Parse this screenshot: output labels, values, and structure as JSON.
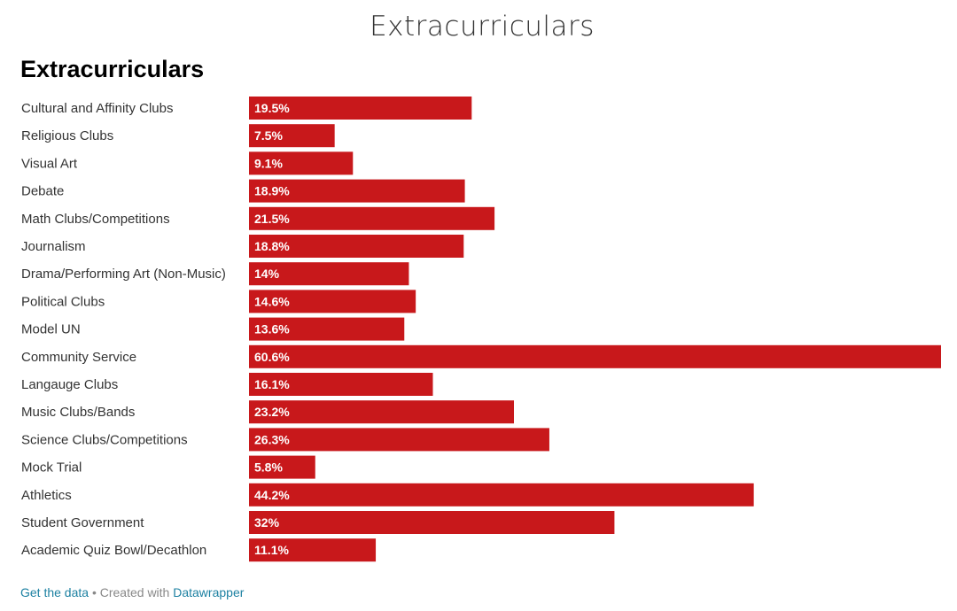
{
  "page": {
    "title": "Extracurriculars"
  },
  "chart_data": {
    "type": "bar",
    "orientation": "horizontal",
    "title": "Extracurriculars",
    "categories": [
      "Cultural and Affinity Clubs",
      "Religious Clubs",
      "Visual Art",
      "Debate",
      "Math Clubs/Competitions",
      "Journalism",
      "Drama/Performing Art (Non-Music)",
      "Political Clubs",
      "Model UN",
      "Community Service",
      "Langauge Clubs",
      "Music Clubs/Bands",
      "Science Clubs/Competitions",
      "Mock Trial",
      "Athletics",
      "Student Government",
      "Academic Quiz Bowl/Decathlon"
    ],
    "values": [
      19.5,
      7.5,
      9.1,
      18.9,
      21.5,
      18.8,
      14,
      14.6,
      13.6,
      60.6,
      16.1,
      23.2,
      26.3,
      5.8,
      44.2,
      32,
      11.1
    ],
    "value_labels": [
      "19.5%",
      "7.5%",
      "9.1%",
      "18.9%",
      "21.5%",
      "18.8%",
      "14%",
      "14.6%",
      "13.6%",
      "60.6%",
      "16.1%",
      "23.2%",
      "26.3%",
      "5.8%",
      "44.2%",
      "32%",
      "11.1%"
    ],
    "unit": "%",
    "xlim": [
      0,
      60.6
    ],
    "bar_color": "#c8181b",
    "grid": false,
    "legend": "none"
  },
  "footer": {
    "data_link": "Get the data",
    "separator": " • Created with ",
    "tool_link": "Datawrapper"
  },
  "colors": {
    "bar": "#c8181b",
    "link": "#1d81a2",
    "footer_text": "#888888"
  }
}
